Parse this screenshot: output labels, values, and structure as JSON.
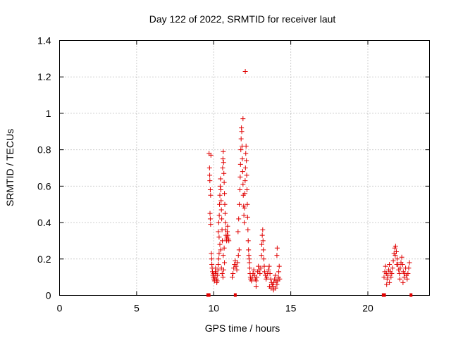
{
  "chart_data": {
    "type": "scatter",
    "title": "Day 122 of 2022, SRMTID for receiver laut",
    "xlabel": "GPS time / hours",
    "ylabel": "SRMTID / TECUs",
    "xlim": [
      0,
      24
    ],
    "ylim": [
      0,
      1.4
    ],
    "grid": true,
    "xticks": [
      0,
      5,
      10,
      15,
      20
    ],
    "xtick_labels": [
      "0",
      "5",
      "10",
      "15",
      "20"
    ],
    "yticks": [
      0,
      0.2,
      0.4,
      0.6,
      0.8,
      1,
      1.2,
      1.4
    ],
    "ytick_labels": [
      "0",
      "0.2",
      "0.4",
      "0.6",
      "0.8",
      "1",
      "1.2",
      "1.4"
    ],
    "series": [
      {
        "name": "SRMTID",
        "color": "#e00000",
        "marker": "plus",
        "points": [
          [
            9.7,
            0.78
          ],
          [
            9.73,
            0.7
          ],
          [
            9.75,
            0.63
          ],
          [
            9.78,
            0.58
          ],
          [
            9.8,
            0.55
          ],
          [
            9.76,
            0.45
          ],
          [
            9.78,
            0.42
          ],
          [
            9.8,
            0.39
          ],
          [
            9.82,
            0.77
          ],
          [
            9.74,
            0.66
          ],
          [
            9.85,
            0.23
          ],
          [
            9.87,
            0.2
          ],
          [
            9.88,
            0.17
          ],
          [
            9.9,
            0.15
          ],
          [
            9.92,
            0.13
          ],
          [
            9.95,
            0.11
          ],
          [
            9.98,
            0.1
          ],
          [
            10.0,
            0.12
          ],
          [
            10.02,
            0.09
          ],
          [
            10.05,
            0.08
          ],
          [
            10.08,
            0.1
          ],
          [
            10.1,
            0.13
          ],
          [
            10.12,
            0.15
          ],
          [
            10.15,
            0.12
          ],
          [
            10.18,
            0.09
          ],
          [
            10.2,
            0.07
          ],
          [
            10.22,
            0.08
          ],
          [
            10.25,
            0.11
          ],
          [
            10.28,
            0.14
          ],
          [
            10.3,
            0.17
          ],
          [
            10.32,
            0.2
          ],
          [
            10.35,
            0.23
          ],
          [
            10.3,
            0.35
          ],
          [
            10.33,
            0.4
          ],
          [
            10.36,
            0.44
          ],
          [
            10.38,
            0.5
          ],
          [
            10.4,
            0.55
          ],
          [
            10.42,
            0.6
          ],
          [
            10.44,
            0.64
          ],
          [
            10.46,
            0.58
          ],
          [
            10.48,
            0.52
          ],
          [
            10.5,
            0.47
          ],
          [
            10.52,
            0.42
          ],
          [
            10.54,
            0.36
          ],
          [
            10.56,
            0.3
          ],
          [
            10.58,
            0.7
          ],
          [
            10.6,
            0.75
          ],
          [
            10.62,
            0.79
          ],
          [
            10.64,
            0.73
          ],
          [
            10.66,
            0.67
          ],
          [
            10.68,
            0.62
          ],
          [
            10.7,
            0.56
          ],
          [
            10.72,
            0.5
          ],
          [
            10.74,
            0.45
          ],
          [
            10.76,
            0.4
          ],
          [
            10.78,
            0.36
          ],
          [
            10.8,
            0.33
          ],
          [
            10.82,
            0.31
          ],
          [
            10.84,
            0.3
          ],
          [
            10.86,
            0.32
          ],
          [
            10.88,
            0.35
          ],
          [
            10.9,
            0.38
          ],
          [
            10.92,
            0.33
          ],
          [
            10.95,
            0.31
          ],
          [
            10.98,
            0.3
          ],
          [
            10.5,
            0.15
          ],
          [
            10.55,
            0.12
          ],
          [
            10.6,
            0.1
          ],
          [
            10.65,
            0.14
          ],
          [
            10.7,
            0.18
          ],
          [
            10.45,
            0.25
          ],
          [
            10.4,
            0.28
          ],
          [
            10.35,
            0.32
          ],
          [
            10.62,
            0.22
          ],
          [
            10.68,
            0.26
          ],
          [
            11.2,
            0.1
          ],
          [
            11.25,
            0.12
          ],
          [
            11.3,
            0.15
          ],
          [
            11.35,
            0.17
          ],
          [
            11.4,
            0.19
          ],
          [
            11.45,
            0.16
          ],
          [
            11.5,
            0.14
          ],
          [
            11.55,
            0.18
          ],
          [
            11.6,
            0.22
          ],
          [
            11.65,
            0.25
          ],
          [
            11.58,
            0.35
          ],
          [
            11.62,
            0.42
          ],
          [
            11.66,
            0.5
          ],
          [
            11.7,
            0.58
          ],
          [
            11.72,
            0.65
          ],
          [
            11.74,
            0.72
          ],
          [
            11.76,
            0.8
          ],
          [
            11.78,
            0.86
          ],
          [
            11.8,
            0.92
          ],
          [
            11.82,
            0.9
          ],
          [
            11.84,
            0.82
          ],
          [
            11.86,
            0.75
          ],
          [
            11.88,
            0.68
          ],
          [
            11.9,
            0.61
          ],
          [
            11.92,
            0.55
          ],
          [
            11.94,
            0.49
          ],
          [
            11.96,
            0.44
          ],
          [
            11.98,
            0.4
          ],
          [
            12.0,
            0.48
          ],
          [
            12.02,
            0.56
          ],
          [
            12.04,
            0.63
          ],
          [
            12.06,
            0.7
          ],
          [
            12.08,
            0.78
          ],
          [
            12.1,
            0.82
          ],
          [
            12.12,
            0.74
          ],
          [
            12.14,
            0.66
          ],
          [
            12.16,
            0.58
          ],
          [
            12.18,
            0.5
          ],
          [
            12.2,
            0.43
          ],
          [
            12.22,
            0.36
          ],
          [
            12.24,
            0.3
          ],
          [
            12.26,
            0.25
          ],
          [
            12.28,
            0.22
          ],
          [
            12.3,
            0.2
          ],
          [
            12.32,
            0.18
          ],
          [
            12.34,
            0.15
          ],
          [
            12.36,
            0.12
          ],
          [
            12.38,
            0.1
          ],
          [
            12.4,
            0.09
          ],
          [
            11.9,
            0.97
          ],
          [
            12.05,
            1.23
          ],
          [
            12.45,
            0.08
          ],
          [
            12.5,
            0.1
          ],
          [
            12.55,
            0.12
          ],
          [
            12.6,
            0.14
          ],
          [
            12.65,
            0.11
          ],
          [
            12.7,
            0.09
          ],
          [
            12.75,
            0.08
          ],
          [
            12.8,
            0.1
          ],
          [
            12.85,
            0.13
          ],
          [
            12.9,
            0.16
          ],
          [
            12.95,
            0.14
          ],
          [
            13.0,
            0.12
          ],
          [
            13.05,
            0.15
          ],
          [
            13.1,
            0.22
          ],
          [
            13.12,
            0.28
          ],
          [
            13.15,
            0.33
          ],
          [
            13.18,
            0.36
          ],
          [
            13.2,
            0.3
          ],
          [
            13.22,
            0.25
          ],
          [
            13.25,
            0.2
          ],
          [
            13.28,
            0.16
          ],
          [
            13.3,
            0.13
          ],
          [
            13.35,
            0.11
          ],
          [
            13.4,
            0.09
          ],
          [
            13.45,
            0.1
          ],
          [
            13.5,
            0.12
          ],
          [
            13.55,
            0.14
          ],
          [
            13.6,
            0.16
          ],
          [
            13.65,
            0.12
          ],
          [
            13.7,
            0.09
          ],
          [
            13.75,
            0.07
          ],
          [
            13.8,
            0.06
          ],
          [
            13.85,
            0.05
          ],
          [
            13.9,
            0.07
          ],
          [
            13.95,
            0.09
          ],
          [
            14.0,
            0.11
          ],
          [
            14.05,
            0.08
          ],
          [
            14.1,
            0.06
          ],
          [
            14.15,
            0.08
          ],
          [
            14.2,
            0.1
          ],
          [
            14.22,
            0.13
          ],
          [
            14.25,
            0.16
          ],
          [
            14.1,
            0.22
          ],
          [
            14.12,
            0.26
          ],
          [
            14.28,
            0.09
          ],
          [
            13.62,
            0.05
          ],
          [
            13.72,
            0.04
          ],
          [
            13.88,
            0.03
          ],
          [
            14.02,
            0.04
          ],
          [
            12.75,
            0.05
          ],
          [
            21.05,
            0.1
          ],
          [
            21.1,
            0.13
          ],
          [
            21.15,
            0.16
          ],
          [
            21.2,
            0.12
          ],
          [
            21.25,
            0.09
          ],
          [
            21.3,
            0.11
          ],
          [
            21.35,
            0.14
          ],
          [
            21.4,
            0.17
          ],
          [
            21.45,
            0.13
          ],
          [
            21.5,
            0.1
          ],
          [
            21.55,
            0.12
          ],
          [
            21.6,
            0.15
          ],
          [
            21.65,
            0.19
          ],
          [
            21.7,
            0.23
          ],
          [
            21.75,
            0.26
          ],
          [
            21.8,
            0.27
          ],
          [
            21.85,
            0.24
          ],
          [
            21.9,
            0.2
          ],
          [
            21.95,
            0.17
          ],
          [
            22.0,
            0.14
          ],
          [
            22.05,
            0.12
          ],
          [
            22.1,
            0.15
          ],
          [
            22.15,
            0.18
          ],
          [
            22.2,
            0.21
          ],
          [
            22.25,
            0.17
          ],
          [
            22.3,
            0.13
          ],
          [
            22.35,
            0.1
          ],
          [
            22.4,
            0.12
          ],
          [
            22.45,
            0.15
          ],
          [
            22.5,
            0.11
          ],
          [
            22.55,
            0.09
          ],
          [
            22.6,
            0.12
          ],
          [
            22.65,
            0.15
          ],
          [
            22.7,
            0.18
          ],
          [
            21.78,
            0.22
          ],
          [
            21.88,
            0.17
          ],
          [
            22.08,
            0.09
          ],
          [
            22.28,
            0.07
          ],
          [
            21.22,
            0.06
          ],
          [
            21.4,
            0.07
          ]
        ]
      }
    ],
    "baseline_markers_x": [
      9.62,
      9.7,
      11.4,
      21.0,
      21.08,
      22.8
    ]
  }
}
